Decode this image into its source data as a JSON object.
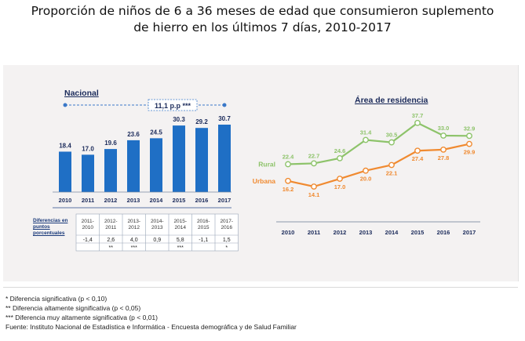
{
  "title_lines": [
    "Proporción de niños de 6 a 36 meses de edad que consumieron suplemento",
    "de hierro en los últimos 7 días, 2010-2017"
  ],
  "nacional": {
    "label": "Nacional",
    "highlight": "11,1 p.p ***",
    "table_header": "Diferencias en puntos porcentuales",
    "periods": [
      "2011-2010",
      "2012-2011",
      "2013-2012",
      "2014-2013",
      "2015-2014",
      "2016-2015",
      "2017-2016"
    ],
    "diffs": [
      "-1,4",
      "2,6",
      "4,0",
      "0,9",
      "5,8",
      "-1,1",
      "1,5"
    ],
    "sig": [
      "",
      "**",
      "***",
      "",
      "***",
      "",
      "*"
    ]
  },
  "area": {
    "label": "Área de residencia"
  },
  "notes": [
    "* Diferencia significativa (p < 0,10)",
    "** Diferencia altamente significativa (p < 0,05)",
    "*** Diferencia muy altamente significativa (p < 0,01)",
    "Fuente: Instituto Nacional de Estadística e Informática - Encuesta demográfica y de Salud Familiar"
  ],
  "colors": {
    "bar": "#1f6fc5",
    "rural": "#8dc36a",
    "urbana": "#f08a30"
  },
  "chart_data": [
    {
      "type": "bar",
      "title": "Nacional",
      "categories": [
        "2010",
        "2011",
        "2012",
        "2013",
        "2014",
        "2015",
        "2016",
        "2017"
      ],
      "values": [
        18.4,
        17.0,
        19.6,
        23.6,
        24.5,
        30.3,
        29.2,
        30.7
      ],
      "data_labels": [
        "18.4",
        "17.0",
        "19.6",
        "23.6",
        "24.5",
        "30.3",
        "29.2",
        "30.7"
      ],
      "ylim": [
        0,
        35
      ],
      "grid": false
    },
    {
      "type": "line",
      "title": "Área de residencia",
      "x": [
        "2010",
        "2011",
        "2012",
        "2013",
        "2014",
        "2015",
        "2016",
        "2017"
      ],
      "series": [
        {
          "name": "Rural",
          "values": [
            22.4,
            22.7,
            24.6,
            31.4,
            30.5,
            37.7,
            33.0,
            32.9
          ],
          "labels": [
            "22.4",
            "22.7",
            "24.6",
            "31.4",
            "30.5",
            "37.7",
            "33.0",
            "32.9"
          ]
        },
        {
          "name": "Urbana",
          "values": [
            16.2,
            14.1,
            17.0,
            20.0,
            22.1,
            27.4,
            27.8,
            29.9
          ],
          "labels": [
            "16.2",
            "14.1",
            "17.0",
            "20.0",
            "22.1",
            "27.4",
            "27.8",
            "29.9"
          ]
        }
      ],
      "ylim": [
        8,
        42
      ],
      "grid": false
    }
  ]
}
